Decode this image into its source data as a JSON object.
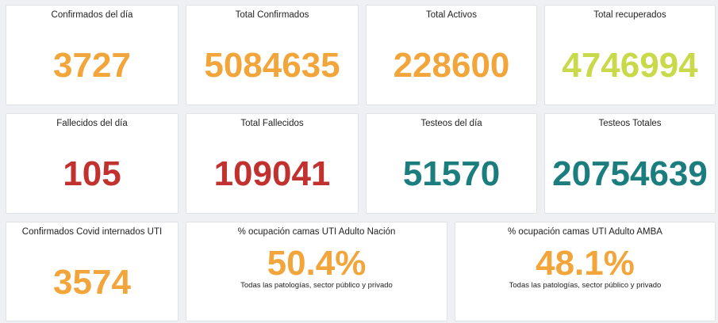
{
  "cards": [
    {
      "title": "Confirmados del día",
      "value": "3727",
      "color": "#f2a53a"
    },
    {
      "title": "Total Confirmados",
      "value": "5084635",
      "color": "#f2a53a"
    },
    {
      "title": "Total Activos",
      "value": "228600",
      "color": "#f2a53a"
    },
    {
      "title": "Total recuperados",
      "value": "4746994",
      "color": "#c8d94a"
    },
    {
      "title": "Fallecidos del día",
      "value": "105",
      "color": "#c0312f"
    },
    {
      "title": "Total Fallecidos",
      "value": "109041",
      "color": "#c0312f"
    },
    {
      "title": "Testeos del día",
      "value": "51570",
      "color": "#1b7d7e"
    },
    {
      "title": "Testeos Totales",
      "value": "20754639",
      "color": "#1b7d7e"
    },
    {
      "title": "Confirmados Covid internados UTI",
      "value": "3574",
      "color": "#f2a53a"
    },
    {
      "title": "% ocupación camas UTI Adulto Nación",
      "value": "50.4%",
      "note": "Todas las patologías, sector público y privado",
      "color": "#f2a53a"
    },
    {
      "title": "% ocupación camas UTI Adulto AMBA",
      "value": "48.1%",
      "note": "Todas las patologías, sector público y privado",
      "color": "#f2a53a"
    }
  ]
}
